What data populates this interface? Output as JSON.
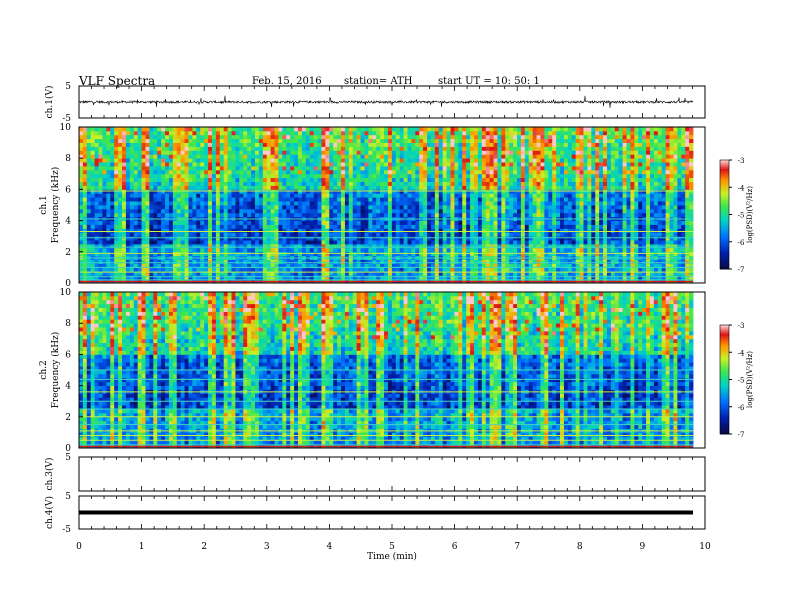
{
  "header": {
    "title": "VLF  Spectra",
    "date": "Feb. 15, 2016",
    "station": "station= ATH",
    "start": "start  UT  =    10: 50: 1"
  },
  "chart_data": [
    {
      "type": "line",
      "panel": "ch1-waveform",
      "ylabel": "ch.1(V)",
      "ylim": [
        -5,
        5
      ],
      "yticks": [
        "5",
        "-5"
      ],
      "xlim": [
        0,
        10
      ],
      "description_values": {
        "baseline": 0,
        "noise_amplitude": 0.6,
        "spike_max": 1.8
      }
    },
    {
      "type": "heatmap",
      "panel": "ch1-spectrogram",
      "ylabel": "ch.1\nFrequency  (kHz)",
      "ylim": [
        0,
        10
      ],
      "yticks": [
        "0",
        "2",
        "4",
        "6",
        "8",
        "10"
      ],
      "xlim": [
        0,
        9.8
      ],
      "colorbar": {
        "label": "log(PSD)(V²/Hz)",
        "range": [
          -7,
          -3
        ],
        "ticks": [
          "-3",
          "-4",
          "-5",
          "-6",
          "-7"
        ]
      },
      "horizontal_lines_khz": [
        0.2,
        0.4,
        0.7,
        1.0,
        1.3,
        1.6,
        1.9,
        2.3,
        2.9,
        3.3,
        4.1,
        5.9
      ]
    },
    {
      "type": "heatmap",
      "panel": "ch2-spectrogram",
      "ylabel": "ch.2\nFrequency  (kHz)",
      "ylim": [
        0,
        10
      ],
      "yticks": [
        "0",
        "2",
        "4",
        "6",
        "8",
        "10"
      ],
      "xlim": [
        0,
        9.8
      ],
      "colorbar": {
        "label": "log(PSD)(V²/Hz)",
        "range": [
          -7,
          -3
        ],
        "ticks": [
          "-3",
          "-4",
          "-5",
          "-6",
          "-7"
        ]
      },
      "horizontal_lines_khz": [
        0.2,
        0.5,
        0.8,
        1.1,
        1.5,
        2.0,
        2.5,
        3.0,
        3.6,
        4.4,
        5.0
      ]
    },
    {
      "type": "line",
      "panel": "ch3-waveform",
      "ylabel": "ch.3(V)",
      "ylim": [
        -5,
        5
      ],
      "yticks": [
        "5"
      ],
      "xlim": [
        0,
        10
      ]
    },
    {
      "type": "line",
      "panel": "ch4-waveform",
      "ylabel": "ch.4(V)",
      "ylim": [
        -5,
        5
      ],
      "yticks": [
        "5",
        "-5"
      ],
      "xlim": [
        0,
        10
      ],
      "description_values": {
        "baseline": 0
      }
    }
  ],
  "xaxis": {
    "label": "Time  (min)",
    "ticks": [
      "0",
      "1",
      "2",
      "3",
      "4",
      "5",
      "6",
      "7",
      "8",
      "9",
      "10"
    ]
  }
}
